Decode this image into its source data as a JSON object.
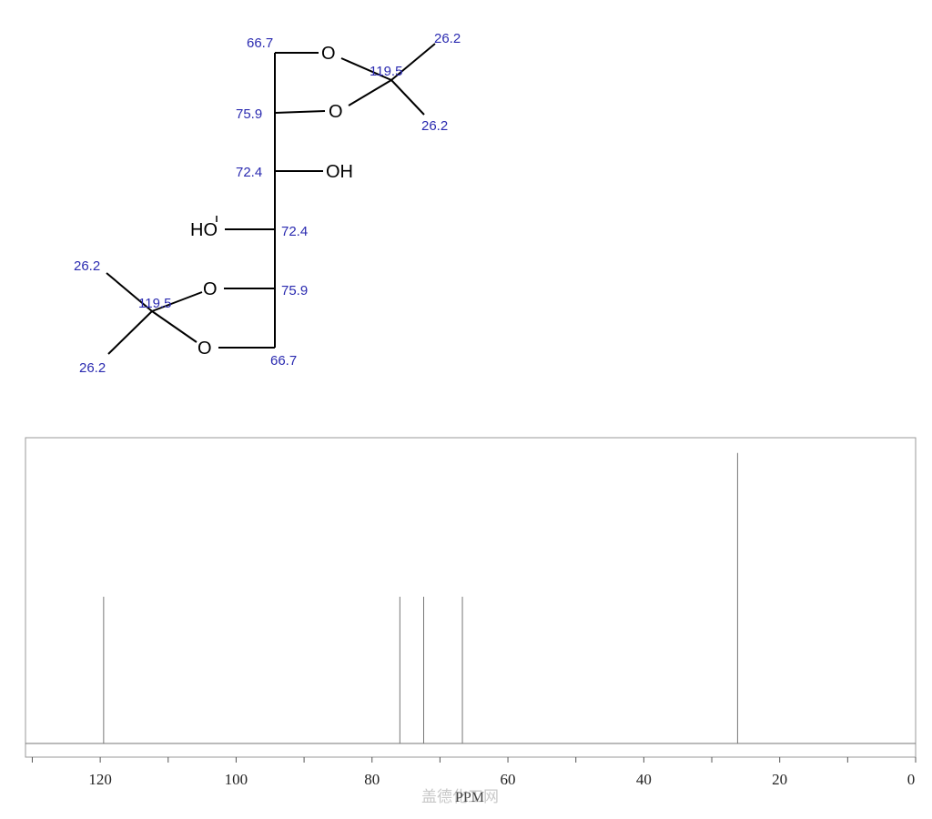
{
  "structure": {
    "atoms": {
      "O": "O",
      "OH": "OH",
      "HO": "HO"
    },
    "shift_labels": {
      "c1_top": "66.7",
      "c2_top": "75.9",
      "c3": "72.4",
      "c4": "72.4",
      "c5_bottom": "75.9",
      "c6_bottom": "66.7",
      "ketal_top": "119.5",
      "ketal_bottom": "119.5",
      "me_top_a": "26.2",
      "me_top_b": "26.2",
      "me_bottom_a": "26.2",
      "me_bottom_b": "26.2"
    }
  },
  "watermark": "盖德化工网",
  "chart_data": {
    "type": "bar",
    "title": "",
    "xlabel": "PPM",
    "ylabel": "",
    "xlim": [
      131,
      0
    ],
    "x_ticks": [
      120,
      100,
      80,
      60,
      40,
      20,
      0
    ],
    "x_tick_labels": [
      "120",
      "100",
      "80",
      "60",
      "40",
      "20",
      "0"
    ],
    "peaks": [
      {
        "ppm": 119.5,
        "intensity": 0.48
      },
      {
        "ppm": 75.9,
        "intensity": 0.48
      },
      {
        "ppm": 72.4,
        "intensity": 0.48
      },
      {
        "ppm": 66.7,
        "intensity": 0.48
      },
      {
        "ppm": 26.2,
        "intensity": 0.95
      }
    ],
    "grid": false
  }
}
